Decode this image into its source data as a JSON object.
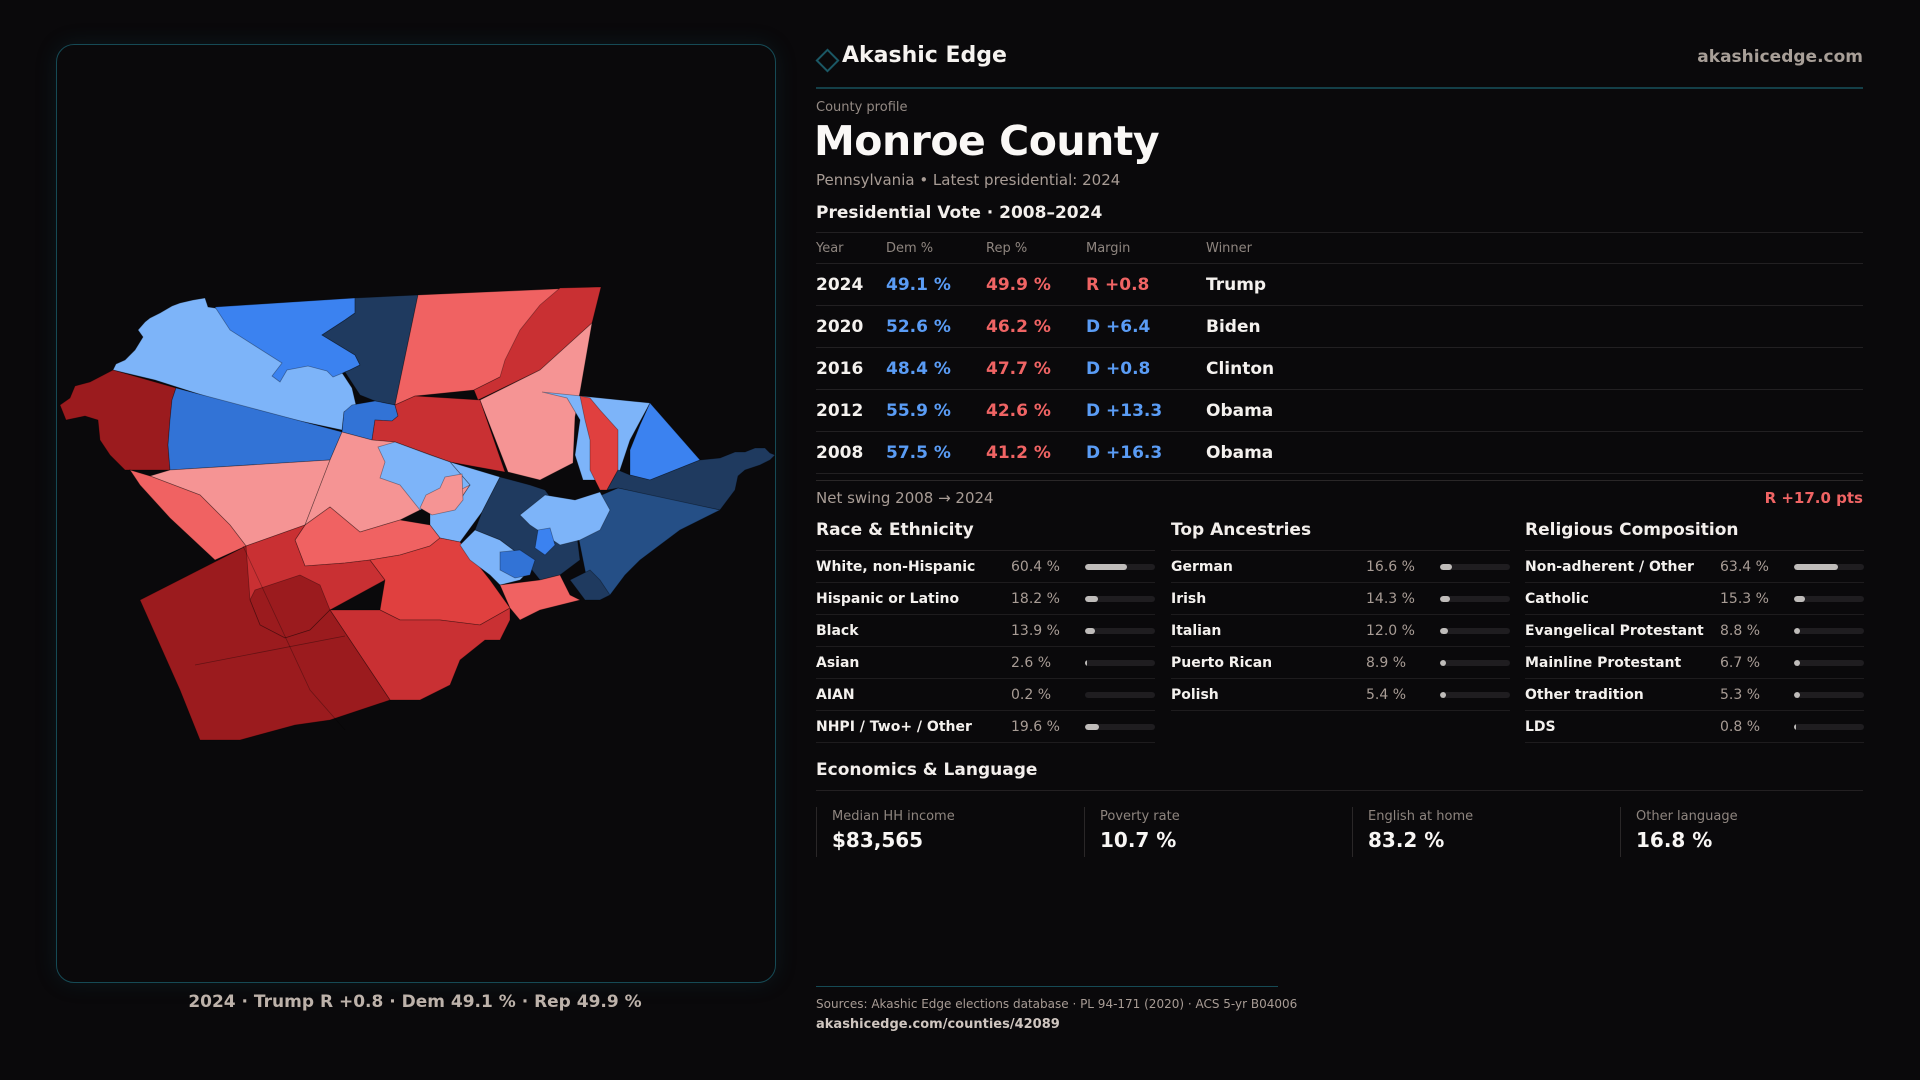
{
  "header": {
    "brand": "Akashic Edge",
    "brand_icon": "diamond-icon",
    "site": "akashicedge.com"
  },
  "profile": {
    "eyebrow": "County profile",
    "title": "Monroe County",
    "subtitle": "Pennsylvania • Latest presidential: 2024"
  },
  "vote": {
    "title": "Presidential Vote · 2008–2024",
    "columns": [
      "Year",
      "Dem %",
      "Rep %",
      "Margin",
      "Winner"
    ],
    "rows": [
      {
        "year": "2024",
        "dem": "49.1 %",
        "rep": "49.9 %",
        "margin": "R +0.8",
        "margin_party": "rep",
        "winner": "Trump"
      },
      {
        "year": "2020",
        "dem": "52.6 %",
        "rep": "46.2 %",
        "margin": "D +6.4",
        "margin_party": "dem",
        "winner": "Biden"
      },
      {
        "year": "2016",
        "dem": "48.4 %",
        "rep": "47.7 %",
        "margin": "D +0.8",
        "margin_party": "dem",
        "winner": "Clinton"
      },
      {
        "year": "2012",
        "dem": "55.9 %",
        "rep": "42.6 %",
        "margin": "D +13.3",
        "margin_party": "dem",
        "winner": "Obama"
      },
      {
        "year": "2008",
        "dem": "57.5 %",
        "rep": "41.2 %",
        "margin": "D +16.3",
        "margin_party": "dem",
        "winner": "Obama"
      }
    ],
    "swing_label": "Net swing 2008 → 2024",
    "swing_value": "R +17.0 pts"
  },
  "race": {
    "title": "Race & Ethnicity",
    "items": [
      {
        "label": "White, non-Hispanic",
        "value": "60.4 %",
        "pct": 60.4
      },
      {
        "label": "Hispanic or Latino",
        "value": "18.2 %",
        "pct": 18.2
      },
      {
        "label": "Black",
        "value": "13.9 %",
        "pct": 13.9
      },
      {
        "label": "Asian",
        "value": "2.6 %",
        "pct": 2.6
      },
      {
        "label": "AIAN",
        "value": "0.2 %",
        "pct": 0.2
      },
      {
        "label": "NHPI / Two+ / Other",
        "value": "19.6 %",
        "pct": 19.6
      }
    ]
  },
  "ancestry": {
    "title": "Top Ancestries",
    "items": [
      {
        "label": "German",
        "value": "16.6 %",
        "pct": 16.6
      },
      {
        "label": "Irish",
        "value": "14.3 %",
        "pct": 14.3
      },
      {
        "label": "Italian",
        "value": "12.0 %",
        "pct": 12.0
      },
      {
        "label": "Puerto Rican",
        "value": "8.9 %",
        "pct": 8.9
      },
      {
        "label": "Polish",
        "value": "5.4 %",
        "pct": 5.4
      }
    ]
  },
  "religion": {
    "title": "Religious Composition",
    "items": [
      {
        "label": "Non-adherent / Other",
        "value": "63.4 %",
        "pct": 63.4
      },
      {
        "label": "Catholic",
        "value": "15.3 %",
        "pct": 15.3
      },
      {
        "label": "Evangelical Protestant",
        "value": "8.8 %",
        "pct": 8.8
      },
      {
        "label": "Mainline Protestant",
        "value": "6.7 %",
        "pct": 6.7
      },
      {
        "label": "Other tradition",
        "value": "5.3 %",
        "pct": 5.3
      },
      {
        "label": "LDS",
        "value": "0.8 %",
        "pct": 0.8
      }
    ]
  },
  "economics": {
    "title": "Economics & Language",
    "items": [
      {
        "label": "Median HH income",
        "value": "$83,565"
      },
      {
        "label": "Poverty rate",
        "value": "10.7 %"
      },
      {
        "label": "English at home",
        "value": "83.2 %"
      },
      {
        "label": "Other language",
        "value": "16.8 %"
      }
    ]
  },
  "map": {
    "caption": "2024 · Trump R +0.8 · Dem 49.1 % · Rep 49.9 %",
    "colors": {
      "r_dark": "#9b1b1e",
      "r_mid": "#c93033",
      "r_bright": "#e0403f",
      "r_light": "#f06262",
      "r_pale": "#f59494",
      "d_navy": "#1f3a5f",
      "d_slate": "#254f86",
      "d_steel": "#3273d6",
      "d_mid": "#3b82f0",
      "d_light": "#7db4f9"
    }
  },
  "footer": {
    "sources": "Sources: Akashic Edge elections database · PL 94-171 (2020) · ACS 5-yr B04006",
    "url": "akashicedge.com/counties/42089"
  },
  "colors": {
    "dem": "#5a9cf5",
    "rep": "#f06464",
    "accent": "#164a55"
  }
}
